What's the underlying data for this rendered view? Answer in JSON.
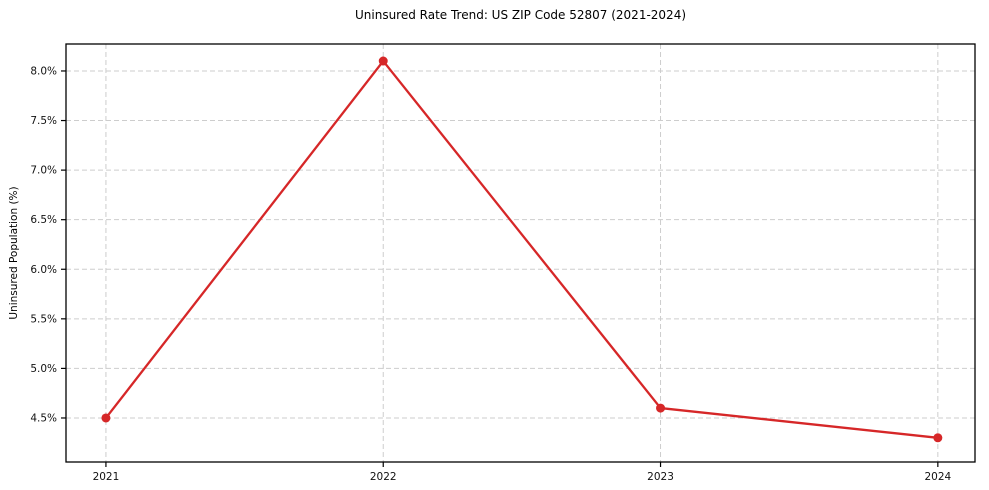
{
  "chart_data": {
    "type": "line",
    "title": "Uninsured Rate Trend: US ZIP Code 52807 (2021-2024)",
    "xlabel": "",
    "ylabel": "Uninsured Population (%)",
    "x": [
      2021,
      2022,
      2023,
      2024
    ],
    "values": [
      4.5,
      8.1,
      4.6,
      4.3
    ],
    "xtick_labels": [
      "2021",
      "2022",
      "2023",
      "2024"
    ],
    "ytick_values": [
      4.5,
      5.0,
      5.5,
      6.0,
      6.5,
      7.0,
      7.5,
      8.0
    ],
    "ytick_labels": [
      "4.5%",
      "5.0%",
      "5.5%",
      "6.0%",
      "6.5%",
      "7.0%",
      "7.5%",
      "8.0%"
    ],
    "xlim": [
      2020.856,
      2024.134
    ],
    "ylim": [
      4.056,
      8.272
    ],
    "grid": true,
    "legend": "none",
    "line_color": "#d62728",
    "marker": "circle"
  }
}
